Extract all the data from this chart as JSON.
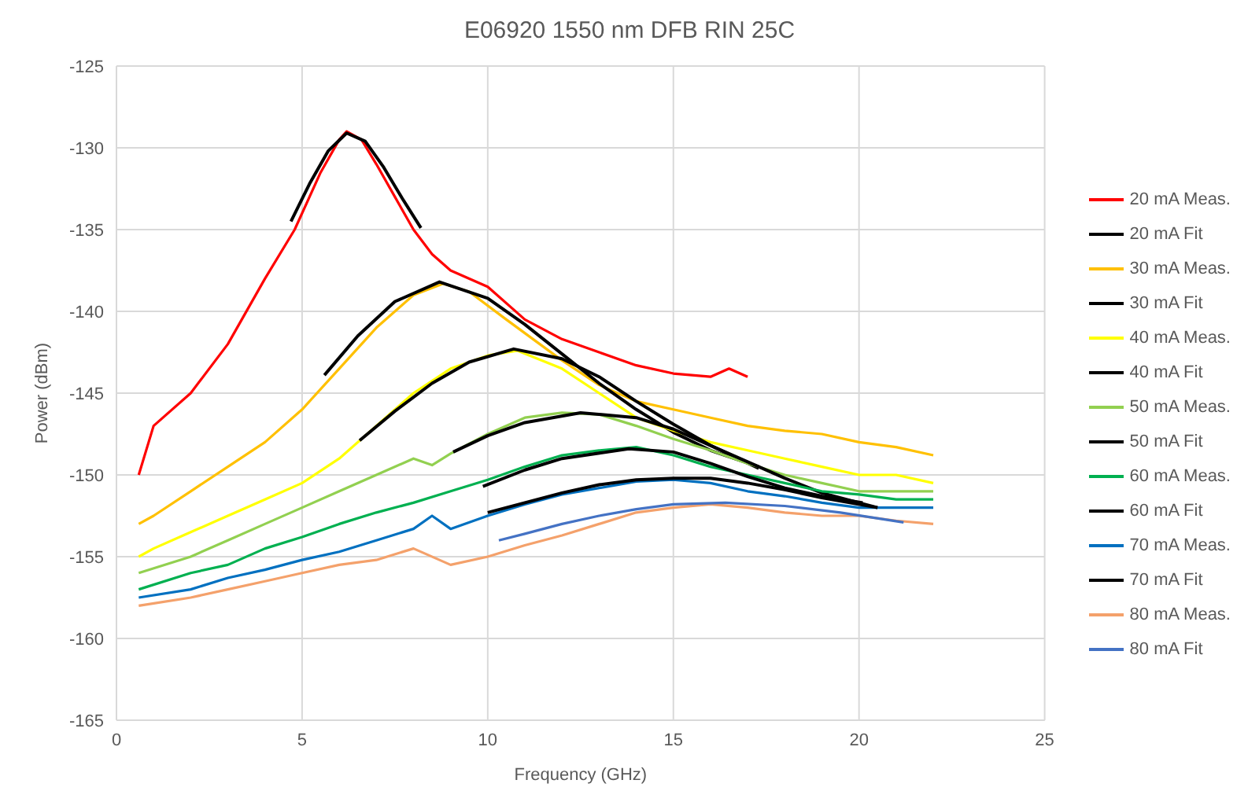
{
  "chart_data": {
    "type": "line",
    "title": "E06920 1550 nm DFB RIN 25C",
    "xlabel": "Frequency (GHz)",
    "ylabel": "Power (dBm)",
    "xlim": [
      0,
      25
    ],
    "xticks": [
      0,
      5,
      10,
      15,
      20,
      25
    ],
    "ylim": [
      -165,
      -125
    ],
    "yticks": [
      -165,
      -160,
      -155,
      -150,
      -145,
      -140,
      -135,
      -130,
      -125
    ],
    "grid": true,
    "legend": "right",
    "series": [
      {
        "name": "20 mA Meas.",
        "color": "#ff0000",
        "x": [
          0.6,
          1,
          2,
          3,
          4,
          4.8,
          5.5,
          6,
          6.2,
          6.6,
          7,
          7.5,
          8,
          8.5,
          9,
          10,
          11,
          12,
          13,
          14,
          15,
          16,
          16.5,
          17
        ],
        "values": [
          -150,
          -147,
          -145,
          -142,
          -138,
          -135,
          -131.5,
          -129.5,
          -129,
          -129.5,
          -131,
          -133,
          -135,
          -136.5,
          -137.5,
          -138.5,
          -140.5,
          -141.7,
          -142.5,
          -143.3,
          -143.8,
          -144,
          -143.5,
          -144
        ]
      },
      {
        "name": "20 mA Fit",
        "color": "#000000",
        "x": [
          4.7,
          5.2,
          5.7,
          6.2,
          6.7,
          7.2,
          7.7,
          8.2
        ],
        "values": [
          -134.5,
          -132.2,
          -130.2,
          -129.1,
          -129.6,
          -131.2,
          -133.1,
          -134.9
        ]
      },
      {
        "name": "30 mA Meas.",
        "color": "#ffc000",
        "x": [
          0.6,
          1,
          2,
          3,
          4,
          5,
          6,
          7,
          8,
          8.8,
          9.5,
          10.5,
          12,
          13,
          14,
          15,
          16,
          17,
          18,
          19,
          20,
          21,
          22
        ],
        "values": [
          -153,
          -152.5,
          -151,
          -149.5,
          -148,
          -146,
          -143.5,
          -141,
          -139,
          -138.3,
          -138.8,
          -140.5,
          -143,
          -144.5,
          -145.5,
          -146,
          -146.5,
          -147,
          -147.3,
          -147.5,
          -148,
          -148.3,
          -148.8
        ]
      },
      {
        "name": "30 mA Fit",
        "color": "#000000",
        "x": [
          5.6,
          6.5,
          7.5,
          8.7,
          10,
          11,
          12,
          13,
          14,
          15,
          16,
          17.3
        ],
        "values": [
          -143.9,
          -141.5,
          -139.4,
          -138.2,
          -139.2,
          -140.8,
          -142.6,
          -144.4,
          -146,
          -147.4,
          -148.5,
          -149.5
        ]
      },
      {
        "name": "40 mA Meas.",
        "color": "#ffff00",
        "x": [
          0.6,
          1,
          2,
          3,
          4,
          5,
          6,
          7,
          8,
          9,
          10,
          10.8,
          12,
          13,
          14,
          15,
          16,
          17,
          18,
          19,
          20,
          21,
          22
        ],
        "values": [
          -155,
          -154.5,
          -153.5,
          -152.5,
          -151.5,
          -150.5,
          -149,
          -147,
          -145,
          -143.5,
          -142.7,
          -142.4,
          -143.5,
          -145,
          -146.5,
          -147.3,
          -148,
          -148.5,
          -149,
          -149.5,
          -150,
          -150,
          -150.5
        ]
      },
      {
        "name": "40 mA Fit",
        "color": "#000000",
        "x": [
          6.55,
          7.5,
          8.5,
          9.5,
          10.7,
          12,
          13,
          14,
          15,
          16,
          17.3
        ],
        "values": [
          -147.9,
          -146.1,
          -144.4,
          -143.1,
          -142.3,
          -142.9,
          -144,
          -145.5,
          -146.9,
          -148.2,
          -149.6
        ]
      },
      {
        "name": "50 mA Meas.",
        "color": "#92d050",
        "x": [
          0.6,
          2,
          3,
          4,
          5,
          6,
          7,
          8,
          8.5,
          9,
          10,
          11,
          12,
          13,
          14,
          15,
          16,
          17,
          18,
          19,
          20,
          21,
          22
        ],
        "values": [
          -156,
          -155,
          -154,
          -153,
          -152,
          -151,
          -150,
          -149,
          -149.4,
          -148.7,
          -147.5,
          -146.5,
          -146.2,
          -146.3,
          -147,
          -147.8,
          -148.5,
          -149.3,
          -150,
          -150.5,
          -151,
          -151,
          -151
        ]
      },
      {
        "name": "50 mA Fit",
        "color": "#000000",
        "x": [
          9.07,
          10,
          11,
          12.5,
          14,
          15,
          16,
          17,
          18,
          19,
          20.5
        ],
        "values": [
          -148.6,
          -147.6,
          -146.8,
          -146.2,
          -146.5,
          -147.2,
          -148.2,
          -149.2,
          -150.2,
          -151.1,
          -152
        ]
      },
      {
        "name": "60 mA Meas.",
        "color": "#00b050",
        "x": [
          0.6,
          2,
          3,
          4,
          5,
          6,
          7,
          8,
          9,
          10,
          11,
          12,
          13,
          14,
          15,
          16,
          17,
          18,
          19,
          20,
          21,
          22
        ],
        "values": [
          -157,
          -156,
          -155.5,
          -154.5,
          -153.8,
          -153,
          -152.3,
          -151.7,
          -151,
          -150.3,
          -149.5,
          -148.8,
          -148.5,
          -148.3,
          -148.8,
          -149.5,
          -150,
          -150.5,
          -151,
          -151.2,
          -151.5,
          -151.5
        ]
      },
      {
        "name": "60 mA Fit",
        "color": "#000000",
        "x": [
          9.87,
          11,
          12,
          13.8,
          15,
          16,
          17,
          18,
          19,
          20.1
        ],
        "values": [
          -150.7,
          -149.7,
          -149,
          -148.4,
          -148.6,
          -149.3,
          -150.1,
          -150.8,
          -151.3,
          -151.7
        ]
      },
      {
        "name": "70 mA Meas.",
        "color": "#0070c0",
        "x": [
          0.6,
          2,
          3,
          4,
          5,
          6,
          7,
          8,
          8.5,
          9,
          10,
          11,
          12,
          13,
          14,
          15,
          16,
          17,
          18,
          19,
          20,
          21,
          22
        ],
        "values": [
          -157.5,
          -157,
          -156.3,
          -155.8,
          -155.2,
          -154.7,
          -154,
          -153.3,
          -152.5,
          -153.3,
          -152.5,
          -151.8,
          -151.2,
          -150.8,
          -150.4,
          -150.3,
          -150.5,
          -151,
          -151.3,
          -151.7,
          -152,
          -152,
          -152
        ]
      },
      {
        "name": "70 mA Fit",
        "color": "#000000",
        "x": [
          10,
          11,
          12,
          13,
          14,
          15,
          16,
          17,
          18,
          19,
          20.5
        ],
        "values": [
          -152.3,
          -151.7,
          -151.1,
          -150.6,
          -150.3,
          -150.2,
          -150.2,
          -150.5,
          -150.9,
          -151.4,
          -152
        ]
      },
      {
        "name": "80 mA Meas.",
        "color": "#f4a16b",
        "x": [
          0.6,
          2,
          3,
          4,
          5,
          6,
          7,
          8,
          9,
          10,
          11,
          12,
          13,
          14,
          15,
          16,
          17,
          18,
          19,
          20,
          21,
          22
        ],
        "values": [
          -158,
          -157.5,
          -157,
          -156.5,
          -156,
          -155.5,
          -155.2,
          -154.5,
          -155.5,
          -155,
          -154.3,
          -153.7,
          -153,
          -152.3,
          -152,
          -151.8,
          -152,
          -152.3,
          -152.5,
          -152.5,
          -152.8,
          -153
        ]
      },
      {
        "name": "80 mA Fit",
        "color": "#4472c4",
        "x": [
          10.3,
          11,
          12,
          13,
          14,
          15,
          16.4,
          18,
          19.5,
          21.2
        ],
        "values": [
          -154,
          -153.6,
          -153,
          -152.5,
          -152.1,
          -151.8,
          -151.7,
          -151.9,
          -152.3,
          -152.9
        ]
      }
    ]
  }
}
